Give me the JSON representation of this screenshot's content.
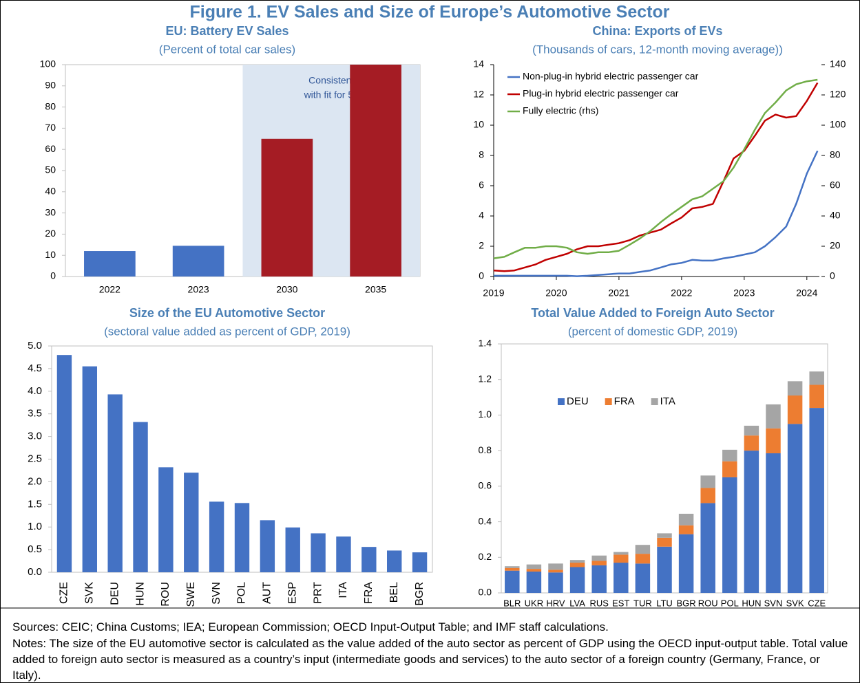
{
  "title": "Figure 1. EV Sales and Size of Europe’s Automotive Sector",
  "sources": "Sources: CEIC; China Customs; IEA; European Commission; OECD Input-Output Table; and IMF staff calculations.",
  "notes": "Notes: The size of the EU automotive sector is calculated as the value added of the auto sector as percent of GDP using the OECD input-output table. Total value added to foreign auto sector is measured as a country’s input (intermediate goods and services) to the auto sector of a foreign country (Germany, France, or Italy).",
  "chart_data": [
    {
      "type": "bar",
      "title": "EU: Battery EV Sales",
      "subtitle": "(Percent of total car sales)",
      "categories": [
        "2022",
        "2023",
        "2030",
        "2035"
      ],
      "values": [
        12,
        14.5,
        65,
        100
      ],
      "colors": [
        "#4472c4",
        "#4472c4",
        "#a51c24",
        "#a51c24"
      ],
      "shaded": [
        false,
        false,
        true,
        true
      ],
      "shade_color": "#dce6f2",
      "annotation": [
        "Consistent",
        "with fit for 55"
      ],
      "ylim": [
        0,
        100
      ],
      "yticks": [
        0,
        10,
        20,
        30,
        40,
        50,
        60,
        70,
        80,
        90,
        100
      ]
    },
    {
      "type": "line",
      "title": "China: Exports of EVs",
      "subtitle": "(Thousands of cars, 12-month moving average))",
      "x": [
        2019,
        2019.17,
        2019.33,
        2019.5,
        2019.67,
        2019.83,
        2020,
        2020.17,
        2020.33,
        2020.5,
        2020.67,
        2020.83,
        2021,
        2021.17,
        2021.33,
        2021.5,
        2021.67,
        2021.83,
        2022,
        2022.17,
        2022.33,
        2022.5,
        2022.67,
        2022.83,
        2023,
        2023.17,
        2023.33,
        2023.5,
        2023.67,
        2023.83,
        2024,
        2024.17
      ],
      "xlim": [
        2019,
        2024.2
      ],
      "xticks": [
        2019,
        2020,
        2021,
        2022,
        2023,
        2024
      ],
      "ylim": [
        0,
        14
      ],
      "yticks": [
        0,
        2,
        4,
        6,
        8,
        10,
        12,
        14
      ],
      "y2lim": [
        0,
        140
      ],
      "y2ticks": [
        0,
        20,
        40,
        60,
        80,
        100,
        120,
        140
      ],
      "legend": "upper left",
      "series": [
        {
          "name": "Non-plug-in hybrid electric passenger car",
          "color": "#4472c4",
          "values": [
            0.05,
            0.05,
            0.05,
            0.05,
            0.05,
            0.05,
            0.05,
            0.05,
            0.02,
            0.05,
            0.1,
            0.15,
            0.2,
            0.2,
            0.3,
            0.4,
            0.6,
            0.8,
            0.9,
            1.1,
            1.05,
            1.05,
            1.2,
            1.3,
            1.45,
            1.6,
            2.0,
            2.6,
            3.3,
            4.8,
            6.8,
            8.3
          ]
        },
        {
          "name": "Plug-in hybrid electric passenger car",
          "color": "#c00000",
          "values": [
            0.4,
            0.35,
            0.4,
            0.6,
            0.8,
            1.1,
            1.3,
            1.5,
            1.8,
            2.0,
            2.0,
            2.1,
            2.2,
            2.4,
            2.7,
            2.9,
            3.1,
            3.5,
            3.9,
            4.5,
            4.6,
            4.8,
            6.3,
            7.8,
            8.3,
            9.3,
            10.3,
            10.7,
            10.5,
            10.6,
            11.6,
            12.8
          ]
        },
        {
          "name": "Fully electric (rhs)",
          "color": "#70ad47",
          "axis": "y2",
          "values": [
            12,
            13,
            16,
            19,
            19,
            20,
            20,
            19,
            16,
            15,
            16,
            16,
            17,
            21,
            25,
            30,
            36,
            41,
            46,
            51,
            53,
            58,
            63,
            72,
            84,
            97,
            108,
            115,
            123,
            127,
            129,
            130
          ]
        }
      ]
    },
    {
      "type": "bar",
      "title": "Size of the EU Automotive Sector",
      "subtitle": "(sectoral value added as percent of GDP, 2019)",
      "categories": [
        "CZE",
        "SVK",
        "DEU",
        "HUN",
        "ROU",
        "SWE",
        "SVN",
        "POL",
        "AUT",
        "ESP",
        "PRT",
        "ITA",
        "FRA",
        "BEL",
        "BGR"
      ],
      "values": [
        4.8,
        4.55,
        3.93,
        3.32,
        2.32,
        2.2,
        1.56,
        1.53,
        1.15,
        0.99,
        0.86,
        0.79,
        0.56,
        0.48,
        0.44
      ],
      "color": "#4472c4",
      "xlabel_rotation": -90,
      "ylim": [
        0,
        5
      ],
      "yticks": [
        {
          "value": 0,
          "label": "0.0"
        },
        0.5,
        {
          "value": 1,
          "label": "1.0"
        },
        1.5,
        {
          "value": 2,
          "label": "2.0"
        },
        2.5,
        {
          "value": 3,
          "label": "3.0"
        },
        3.5,
        {
          "value": 4,
          "label": "4.0"
        },
        4.5,
        {
          "value": 5,
          "label": "5.0"
        }
      ]
    },
    {
      "type": "stacked_bar",
      "title": "Total Value Added to Foreign Auto Sector",
      "subtitle": "(percent of domestic GDP, 2019)",
      "categories": [
        "BLR",
        "UKR",
        "HRV",
        "LVA",
        "RUS",
        "EST",
        "TUR",
        "LTU",
        "BGR",
        "ROU",
        "POL",
        "HUN",
        "SVN",
        "SVK",
        "CZE"
      ],
      "legend": "upper left",
      "series": [
        {
          "name": "DEU",
          "color": "#4472c4",
          "values": [
            0.125,
            0.12,
            0.115,
            0.145,
            0.155,
            0.17,
            0.165,
            0.26,
            0.33,
            0.505,
            0.65,
            0.8,
            0.785,
            0.95,
            1.04
          ]
        },
        {
          "name": "FRA",
          "color": "#ed7d31",
          "values": [
            0.015,
            0.015,
            0.015,
            0.025,
            0.025,
            0.045,
            0.055,
            0.05,
            0.05,
            0.085,
            0.09,
            0.085,
            0.14,
            0.16,
            0.13
          ]
        },
        {
          "name": "ITA",
          "color": "#a5a5a5",
          "values": [
            0.01,
            0.025,
            0.035,
            0.015,
            0.03,
            0.015,
            0.05,
            0.025,
            0.065,
            0.07,
            0.065,
            0.055,
            0.135,
            0.08,
            0.075
          ]
        }
      ],
      "ylim": [
        0,
        1.4
      ],
      "yticks": [
        {
          "value": 0,
          "label": "0.0"
        },
        0.2,
        0.4,
        0.6,
        0.8,
        {
          "value": 1,
          "label": "1.0"
        },
        1.2,
        1.4
      ]
    }
  ]
}
